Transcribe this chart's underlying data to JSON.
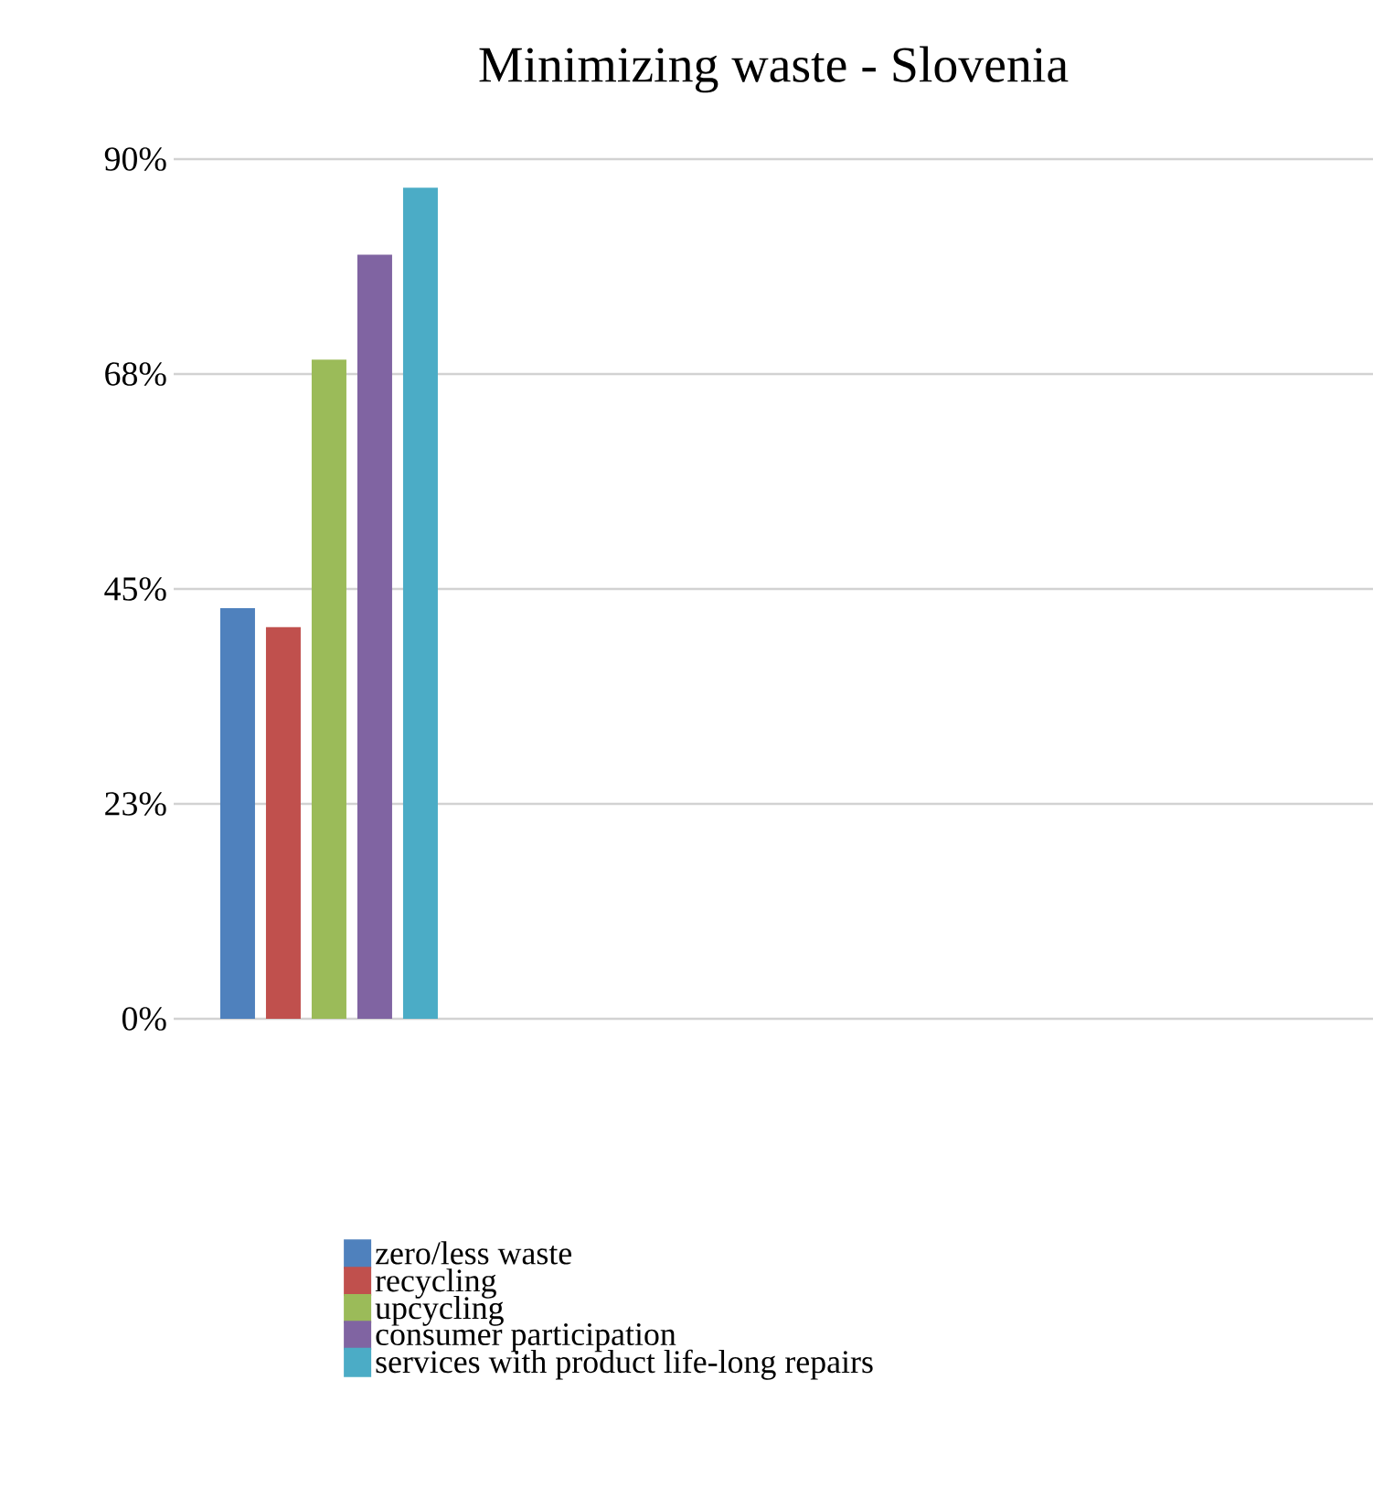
{
  "chart_data": {
    "type": "bar",
    "title": "Minimizing waste - Slovenia",
    "categories": [
      null
    ],
    "series": [
      {
        "name": "zero/less waste",
        "color": "#4f81bd",
        "values": [
          43
        ]
      },
      {
        "name": "recycling",
        "color": "#c0504d",
        "values": [
          41
        ]
      },
      {
        "name": "upcycling",
        "color": "#9bbb59",
        "values": [
          69
        ]
      },
      {
        "name": "consumer participation",
        "color": "#8064a2",
        "values": [
          80
        ]
      },
      {
        "name": "services with product life-long repairs",
        "color": "#4bacc6",
        "values": [
          87
        ]
      }
    ],
    "ylim": [
      0,
      90
    ],
    "yticks": [
      {
        "value": 0,
        "label": "0%"
      },
      {
        "value": 22.5,
        "label": "23%"
      },
      {
        "value": 45,
        "label": "45%"
      },
      {
        "value": 67.5,
        "label": "68%"
      },
      {
        "value": 90,
        "label": "90%"
      }
    ],
    "grid": "y",
    "legend": "bottom"
  }
}
